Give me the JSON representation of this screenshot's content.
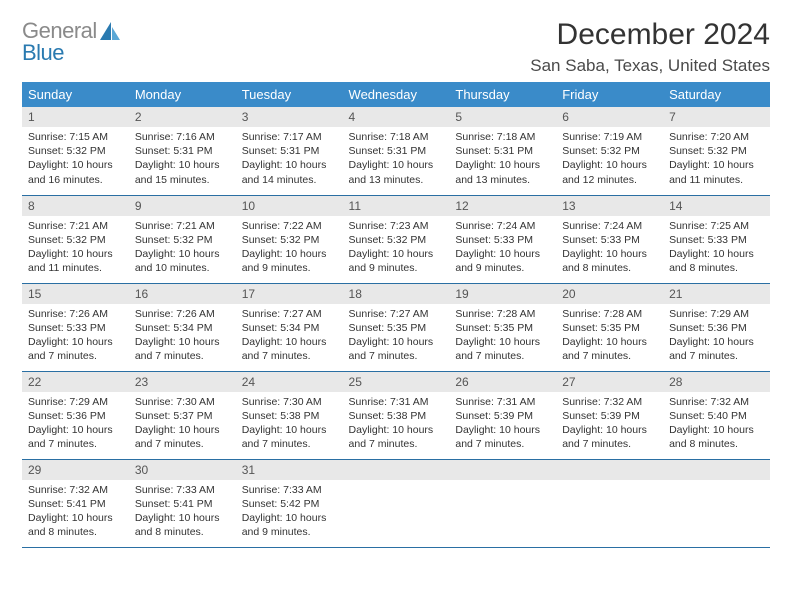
{
  "brand": {
    "word1": "General",
    "word2": "Blue"
  },
  "header": {
    "month_title": "December 2024",
    "location": "San Saba, Texas, United States"
  },
  "styles": {
    "header_bg": "#3a8bc9",
    "header_fg": "#ffffff",
    "daynum_bg": "#e8e8e8",
    "row_border": "#2a6fa3",
    "text_color": "#333333",
    "title_fontsize": 30,
    "location_fontsize": 17,
    "th_fontsize": 13,
    "cell_fontsize": 10.5
  },
  "weekday_labels": [
    "Sunday",
    "Monday",
    "Tuesday",
    "Wednesday",
    "Thursday",
    "Friday",
    "Saturday"
  ],
  "weeks": [
    [
      {
        "n": "1",
        "sr": "Sunrise: 7:15 AM",
        "ss": "Sunset: 5:32 PM",
        "d1": "Daylight: 10 hours",
        "d2": "and 16 minutes."
      },
      {
        "n": "2",
        "sr": "Sunrise: 7:16 AM",
        "ss": "Sunset: 5:31 PM",
        "d1": "Daylight: 10 hours",
        "d2": "and 15 minutes."
      },
      {
        "n": "3",
        "sr": "Sunrise: 7:17 AM",
        "ss": "Sunset: 5:31 PM",
        "d1": "Daylight: 10 hours",
        "d2": "and 14 minutes."
      },
      {
        "n": "4",
        "sr": "Sunrise: 7:18 AM",
        "ss": "Sunset: 5:31 PM",
        "d1": "Daylight: 10 hours",
        "d2": "and 13 minutes."
      },
      {
        "n": "5",
        "sr": "Sunrise: 7:18 AM",
        "ss": "Sunset: 5:31 PM",
        "d1": "Daylight: 10 hours",
        "d2": "and 13 minutes."
      },
      {
        "n": "6",
        "sr": "Sunrise: 7:19 AM",
        "ss": "Sunset: 5:32 PM",
        "d1": "Daylight: 10 hours",
        "d2": "and 12 minutes."
      },
      {
        "n": "7",
        "sr": "Sunrise: 7:20 AM",
        "ss": "Sunset: 5:32 PM",
        "d1": "Daylight: 10 hours",
        "d2": "and 11 minutes."
      }
    ],
    [
      {
        "n": "8",
        "sr": "Sunrise: 7:21 AM",
        "ss": "Sunset: 5:32 PM",
        "d1": "Daylight: 10 hours",
        "d2": "and 11 minutes."
      },
      {
        "n": "9",
        "sr": "Sunrise: 7:21 AM",
        "ss": "Sunset: 5:32 PM",
        "d1": "Daylight: 10 hours",
        "d2": "and 10 minutes."
      },
      {
        "n": "10",
        "sr": "Sunrise: 7:22 AM",
        "ss": "Sunset: 5:32 PM",
        "d1": "Daylight: 10 hours",
        "d2": "and 9 minutes."
      },
      {
        "n": "11",
        "sr": "Sunrise: 7:23 AM",
        "ss": "Sunset: 5:32 PM",
        "d1": "Daylight: 10 hours",
        "d2": "and 9 minutes."
      },
      {
        "n": "12",
        "sr": "Sunrise: 7:24 AM",
        "ss": "Sunset: 5:33 PM",
        "d1": "Daylight: 10 hours",
        "d2": "and 9 minutes."
      },
      {
        "n": "13",
        "sr": "Sunrise: 7:24 AM",
        "ss": "Sunset: 5:33 PM",
        "d1": "Daylight: 10 hours",
        "d2": "and 8 minutes."
      },
      {
        "n": "14",
        "sr": "Sunrise: 7:25 AM",
        "ss": "Sunset: 5:33 PM",
        "d1": "Daylight: 10 hours",
        "d2": "and 8 minutes."
      }
    ],
    [
      {
        "n": "15",
        "sr": "Sunrise: 7:26 AM",
        "ss": "Sunset: 5:33 PM",
        "d1": "Daylight: 10 hours",
        "d2": "and 7 minutes."
      },
      {
        "n": "16",
        "sr": "Sunrise: 7:26 AM",
        "ss": "Sunset: 5:34 PM",
        "d1": "Daylight: 10 hours",
        "d2": "and 7 minutes."
      },
      {
        "n": "17",
        "sr": "Sunrise: 7:27 AM",
        "ss": "Sunset: 5:34 PM",
        "d1": "Daylight: 10 hours",
        "d2": "and 7 minutes."
      },
      {
        "n": "18",
        "sr": "Sunrise: 7:27 AM",
        "ss": "Sunset: 5:35 PM",
        "d1": "Daylight: 10 hours",
        "d2": "and 7 minutes."
      },
      {
        "n": "19",
        "sr": "Sunrise: 7:28 AM",
        "ss": "Sunset: 5:35 PM",
        "d1": "Daylight: 10 hours",
        "d2": "and 7 minutes."
      },
      {
        "n": "20",
        "sr": "Sunrise: 7:28 AM",
        "ss": "Sunset: 5:35 PM",
        "d1": "Daylight: 10 hours",
        "d2": "and 7 minutes."
      },
      {
        "n": "21",
        "sr": "Sunrise: 7:29 AM",
        "ss": "Sunset: 5:36 PM",
        "d1": "Daylight: 10 hours",
        "d2": "and 7 minutes."
      }
    ],
    [
      {
        "n": "22",
        "sr": "Sunrise: 7:29 AM",
        "ss": "Sunset: 5:36 PM",
        "d1": "Daylight: 10 hours",
        "d2": "and 7 minutes."
      },
      {
        "n": "23",
        "sr": "Sunrise: 7:30 AM",
        "ss": "Sunset: 5:37 PM",
        "d1": "Daylight: 10 hours",
        "d2": "and 7 minutes."
      },
      {
        "n": "24",
        "sr": "Sunrise: 7:30 AM",
        "ss": "Sunset: 5:38 PM",
        "d1": "Daylight: 10 hours",
        "d2": "and 7 minutes."
      },
      {
        "n": "25",
        "sr": "Sunrise: 7:31 AM",
        "ss": "Sunset: 5:38 PM",
        "d1": "Daylight: 10 hours",
        "d2": "and 7 minutes."
      },
      {
        "n": "26",
        "sr": "Sunrise: 7:31 AM",
        "ss": "Sunset: 5:39 PM",
        "d1": "Daylight: 10 hours",
        "d2": "and 7 minutes."
      },
      {
        "n": "27",
        "sr": "Sunrise: 7:32 AM",
        "ss": "Sunset: 5:39 PM",
        "d1": "Daylight: 10 hours",
        "d2": "and 7 minutes."
      },
      {
        "n": "28",
        "sr": "Sunrise: 7:32 AM",
        "ss": "Sunset: 5:40 PM",
        "d1": "Daylight: 10 hours",
        "d2": "and 8 minutes."
      }
    ],
    [
      {
        "n": "29",
        "sr": "Sunrise: 7:32 AM",
        "ss": "Sunset: 5:41 PM",
        "d1": "Daylight: 10 hours",
        "d2": "and 8 minutes."
      },
      {
        "n": "30",
        "sr": "Sunrise: 7:33 AM",
        "ss": "Sunset: 5:41 PM",
        "d1": "Daylight: 10 hours",
        "d2": "and 8 minutes."
      },
      {
        "n": "31",
        "sr": "Sunrise: 7:33 AM",
        "ss": "Sunset: 5:42 PM",
        "d1": "Daylight: 10 hours",
        "d2": "and 9 minutes."
      },
      null,
      null,
      null,
      null
    ]
  ]
}
